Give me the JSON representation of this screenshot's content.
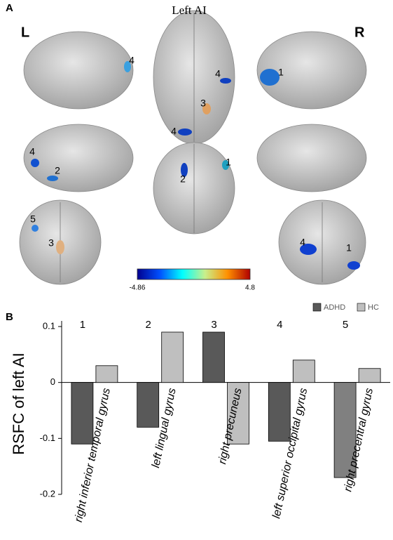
{
  "panel_a": {
    "letter": "A",
    "title": "Left AI",
    "left": "L",
    "right": "R",
    "region_labels": [
      "4",
      "1",
      "4",
      "3",
      "4",
      "4",
      "2",
      "1",
      "2",
      "5",
      "3",
      "4",
      "1"
    ],
    "colorbar": {
      "min": -4.86,
      "max": 4.8
    }
  },
  "panel_b": {
    "letter": "B"
  },
  "chart_data": {
    "type": "bar",
    "ylabel": "RSFC of left AI",
    "categories": [
      "right inferior temporal gyrus",
      "left lingual gyrus",
      "right precuneus",
      "left superior occipital gyrus",
      "right precentral gyrus"
    ],
    "group_labels": [
      "1",
      "2",
      "3",
      "4",
      "5"
    ],
    "series": [
      {
        "name": "ADHD",
        "color": "#595959",
        "colors": [
          "#595959",
          "#595959",
          "#595959",
          "#595959",
          "#808080"
        ],
        "values": [
          -0.11,
          -0.08,
          0.09,
          -0.105,
          -0.17
        ]
      },
      {
        "name": "HC",
        "color": "#bfbfbf",
        "values": [
          0.03,
          0.09,
          -0.11,
          0.04,
          0.025
        ]
      }
    ],
    "ylim": [
      -0.2,
      0.1
    ],
    "yticks": [
      -0.2,
      -0.1,
      0,
      0.1
    ],
    "legend": "top-right"
  }
}
